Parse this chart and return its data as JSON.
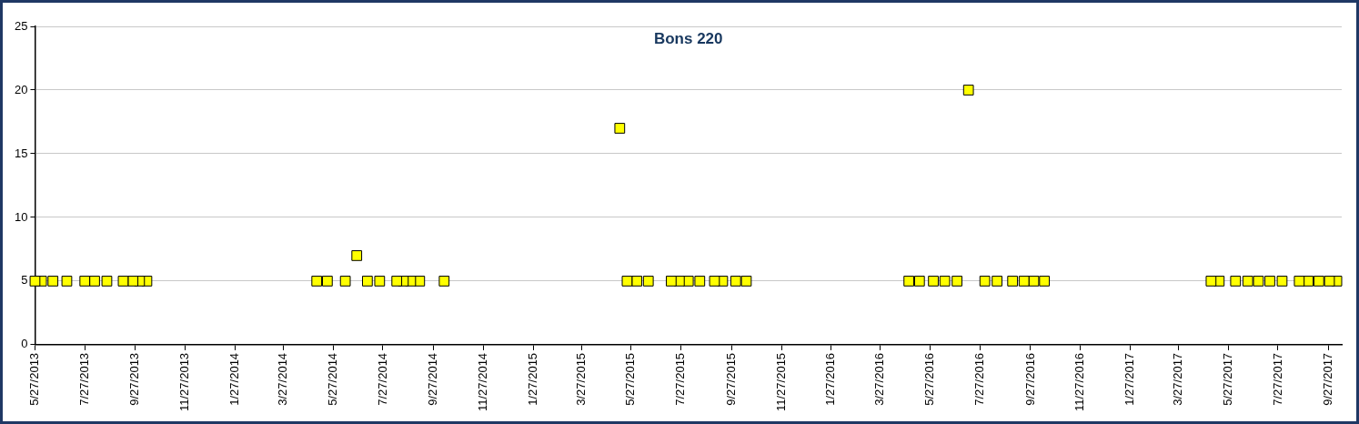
{
  "chart_data": {
    "type": "scatter",
    "title": "Bons 220",
    "marker": "square",
    "grid": "y",
    "x": [
      "2013-05-27",
      "2013-06-04",
      "2013-06-18",
      "2013-07-05",
      "2013-07-27",
      "2013-08-08",
      "2013-08-23",
      "2013-09-12",
      "2013-09-24",
      "2013-10-02",
      "2013-10-11",
      "2014-05-07",
      "2014-05-20",
      "2014-06-11",
      "2014-06-25",
      "2014-07-08",
      "2014-07-23",
      "2014-08-13",
      "2014-08-21",
      "2014-08-30",
      "2014-09-10",
      "2014-10-10",
      "2015-05-13",
      "2015-05-22",
      "2015-06-03",
      "2015-06-17",
      "2015-07-15",
      "2015-07-25",
      "2015-08-05",
      "2015-08-19",
      "2015-09-06",
      "2015-09-16",
      "2015-10-02",
      "2015-10-15",
      "2016-05-01",
      "2016-05-14",
      "2016-05-31",
      "2016-06-14",
      "2016-06-29",
      "2016-07-13",
      "2016-08-02",
      "2016-08-17",
      "2016-09-05",
      "2016-09-19",
      "2016-10-01",
      "2016-10-14",
      "2017-05-06",
      "2017-05-16",
      "2017-06-05",
      "2017-06-20",
      "2017-07-03",
      "2017-07-17",
      "2017-08-01",
      "2017-08-22",
      "2017-09-02",
      "2017-09-15",
      "2017-09-28",
      "2017-10-07"
    ],
    "series": [
      {
        "color": "#ffff00",
        "values": [
          5,
          5,
          5,
          5,
          5,
          5,
          5,
          5,
          5,
          5,
          5,
          5,
          5,
          5,
          7,
          5,
          5,
          5,
          5,
          5,
          5,
          5,
          17,
          5,
          5,
          5,
          5,
          5,
          5,
          5,
          5,
          5,
          5,
          5,
          5,
          5,
          5,
          5,
          5,
          20,
          5,
          5,
          5,
          5,
          5,
          5,
          5,
          5,
          5,
          5,
          5,
          5,
          5,
          5,
          5,
          5,
          5,
          5
        ]
      }
    ],
    "xlim": [
      "2013-05-27",
      "2017-10-13"
    ],
    "xticks": [
      {
        "value": "2013-05-27",
        "label": "5/27/2013"
      },
      {
        "value": "2013-07-27",
        "label": "7/27/2013"
      },
      {
        "value": "2013-09-27",
        "label": "9/27/2013"
      },
      {
        "value": "2013-11-27",
        "label": "11/27/2013"
      },
      {
        "value": "2014-01-27",
        "label": "1/27/2014"
      },
      {
        "value": "2014-03-27",
        "label": "3/27/2014"
      },
      {
        "value": "2014-05-27",
        "label": "5/27/2014"
      },
      {
        "value": "2014-07-27",
        "label": "7/27/2014"
      },
      {
        "value": "2014-09-27",
        "label": "9/27/2014"
      },
      {
        "value": "2014-11-27",
        "label": "11/27/2014"
      },
      {
        "value": "2015-01-27",
        "label": "1/27/2015"
      },
      {
        "value": "2015-03-27",
        "label": "3/27/2015"
      },
      {
        "value": "2015-05-27",
        "label": "5/27/2015"
      },
      {
        "value": "2015-07-27",
        "label": "7/27/2015"
      },
      {
        "value": "2015-09-27",
        "label": "9/27/2015"
      },
      {
        "value": "2015-11-27",
        "label": "11/27/2015"
      },
      {
        "value": "2016-01-27",
        "label": "1/27/2016"
      },
      {
        "value": "2016-03-27",
        "label": "3/27/2016"
      },
      {
        "value": "2016-05-27",
        "label": "5/27/2016"
      },
      {
        "value": "2016-07-27",
        "label": "7/27/2016"
      },
      {
        "value": "2016-09-27",
        "label": "9/27/2016"
      },
      {
        "value": "2016-11-27",
        "label": "11/27/2016"
      },
      {
        "value": "2017-01-27",
        "label": "1/27/2017"
      },
      {
        "value": "2017-03-27",
        "label": "3/27/2017"
      },
      {
        "value": "2017-05-27",
        "label": "5/27/2017"
      },
      {
        "value": "2017-07-27",
        "label": "7/27/2017"
      },
      {
        "value": "2017-09-27",
        "label": "9/27/2017"
      }
    ],
    "ylim": [
      0,
      25
    ],
    "yticks": [
      0,
      5,
      10,
      15,
      20,
      25
    ]
  }
}
